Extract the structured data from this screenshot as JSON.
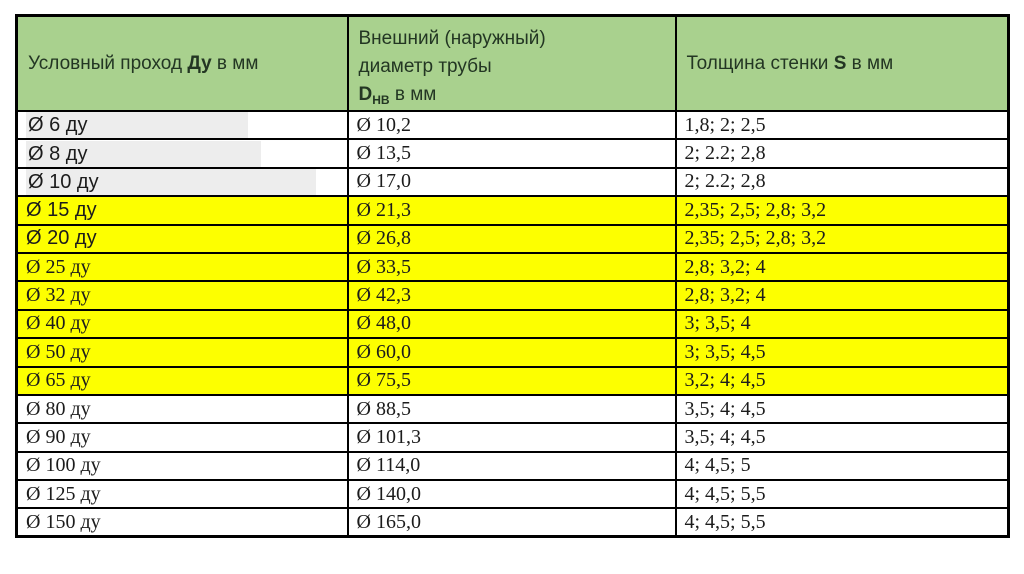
{
  "colors": {
    "header_bg": "#a9d18e",
    "row_yellow": "#fdff00",
    "row_white": "#ffffff",
    "border": "#000000",
    "text": "#1c1c1c",
    "header_text": "#233623",
    "marker": "#ededed"
  },
  "table": {
    "header": {
      "col1": {
        "prefix": "Условный проход ",
        "bold": "Ду",
        "suffix": " в мм"
      },
      "col2": {
        "line1": "Внешний (наружный)",
        "line2": "диаметр трубы",
        "bold_d": "D",
        "subscript": "НВ",
        "suffix": " в мм"
      },
      "col3": {
        "prefix": "Толщина стенки ",
        "bold": "S",
        "suffix": " в мм"
      }
    },
    "rows": [
      {
        "nominal_bore": "Ø 6 ду",
        "outer_diameter": "Ø 10,2",
        "wall_thickness": "1,8; 2; 2,5",
        "highlighted": false,
        "marked": true
      },
      {
        "nominal_bore": "Ø 8 ду",
        "outer_diameter": "Ø 13,5",
        "wall_thickness": "2; 2.2; 2,8",
        "highlighted": false,
        "marked": true
      },
      {
        "nominal_bore": "Ø 10 ду",
        "outer_diameter": "Ø 17,0",
        "wall_thickness": "2; 2.2; 2,8",
        "highlighted": false,
        "marked": true
      },
      {
        "nominal_bore": "Ø 15 ду",
        "outer_diameter": "Ø 21,3",
        "wall_thickness": "2,35; 2,5; 2,8; 3,2",
        "highlighted": true,
        "marked": false
      },
      {
        "nominal_bore": "Ø 20 ду",
        "outer_diameter": "Ø 26,8",
        "wall_thickness": "2,35; 2,5; 2,8; 3,2",
        "highlighted": true,
        "marked": false
      },
      {
        "nominal_bore": "Ø 25 ду",
        "outer_diameter": "Ø 33,5",
        "wall_thickness": "2,8; 3,2; 4",
        "highlighted": true,
        "marked": false
      },
      {
        "nominal_bore": "Ø 32 ду",
        "outer_diameter": "Ø 42,3",
        "wall_thickness": "2,8; 3,2; 4",
        "highlighted": true,
        "marked": false
      },
      {
        "nominal_bore": "Ø 40 ду",
        "outer_diameter": "Ø 48,0",
        "wall_thickness": "3; 3,5; 4",
        "highlighted": true,
        "marked": false
      },
      {
        "nominal_bore": "Ø 50 ду",
        "outer_diameter": "Ø 60,0",
        "wall_thickness": "3; 3,5; 4,5",
        "highlighted": true,
        "marked": false
      },
      {
        "nominal_bore": "Ø 65 ду",
        "outer_diameter": "Ø 75,5",
        "wall_thickness": "3,2; 4; 4,5",
        "highlighted": true,
        "marked": false
      },
      {
        "nominal_bore": "Ø 80 ду",
        "outer_diameter": "Ø 88,5",
        "wall_thickness": "3,5; 4; 4,5",
        "highlighted": false,
        "marked": false
      },
      {
        "nominal_bore": "Ø 90 ду",
        "outer_diameter": "Ø 101,3",
        "wall_thickness": "3,5; 4; 4,5",
        "highlighted": false,
        "marked": false
      },
      {
        "nominal_bore": "Ø 100 ду",
        "outer_diameter": "Ø 114,0",
        "wall_thickness": "4; 4,5; 5",
        "highlighted": false,
        "marked": false
      },
      {
        "nominal_bore": "Ø 125 ду",
        "outer_diameter": "Ø 140,0",
        "wall_thickness": "4; 4,5; 5,5",
        "highlighted": false,
        "marked": false
      },
      {
        "nominal_bore": "Ø 150 ду",
        "outer_diameter": "Ø 165,0",
        "wall_thickness": "4; 4,5; 5,5",
        "highlighted": false,
        "marked": false
      }
    ]
  }
}
